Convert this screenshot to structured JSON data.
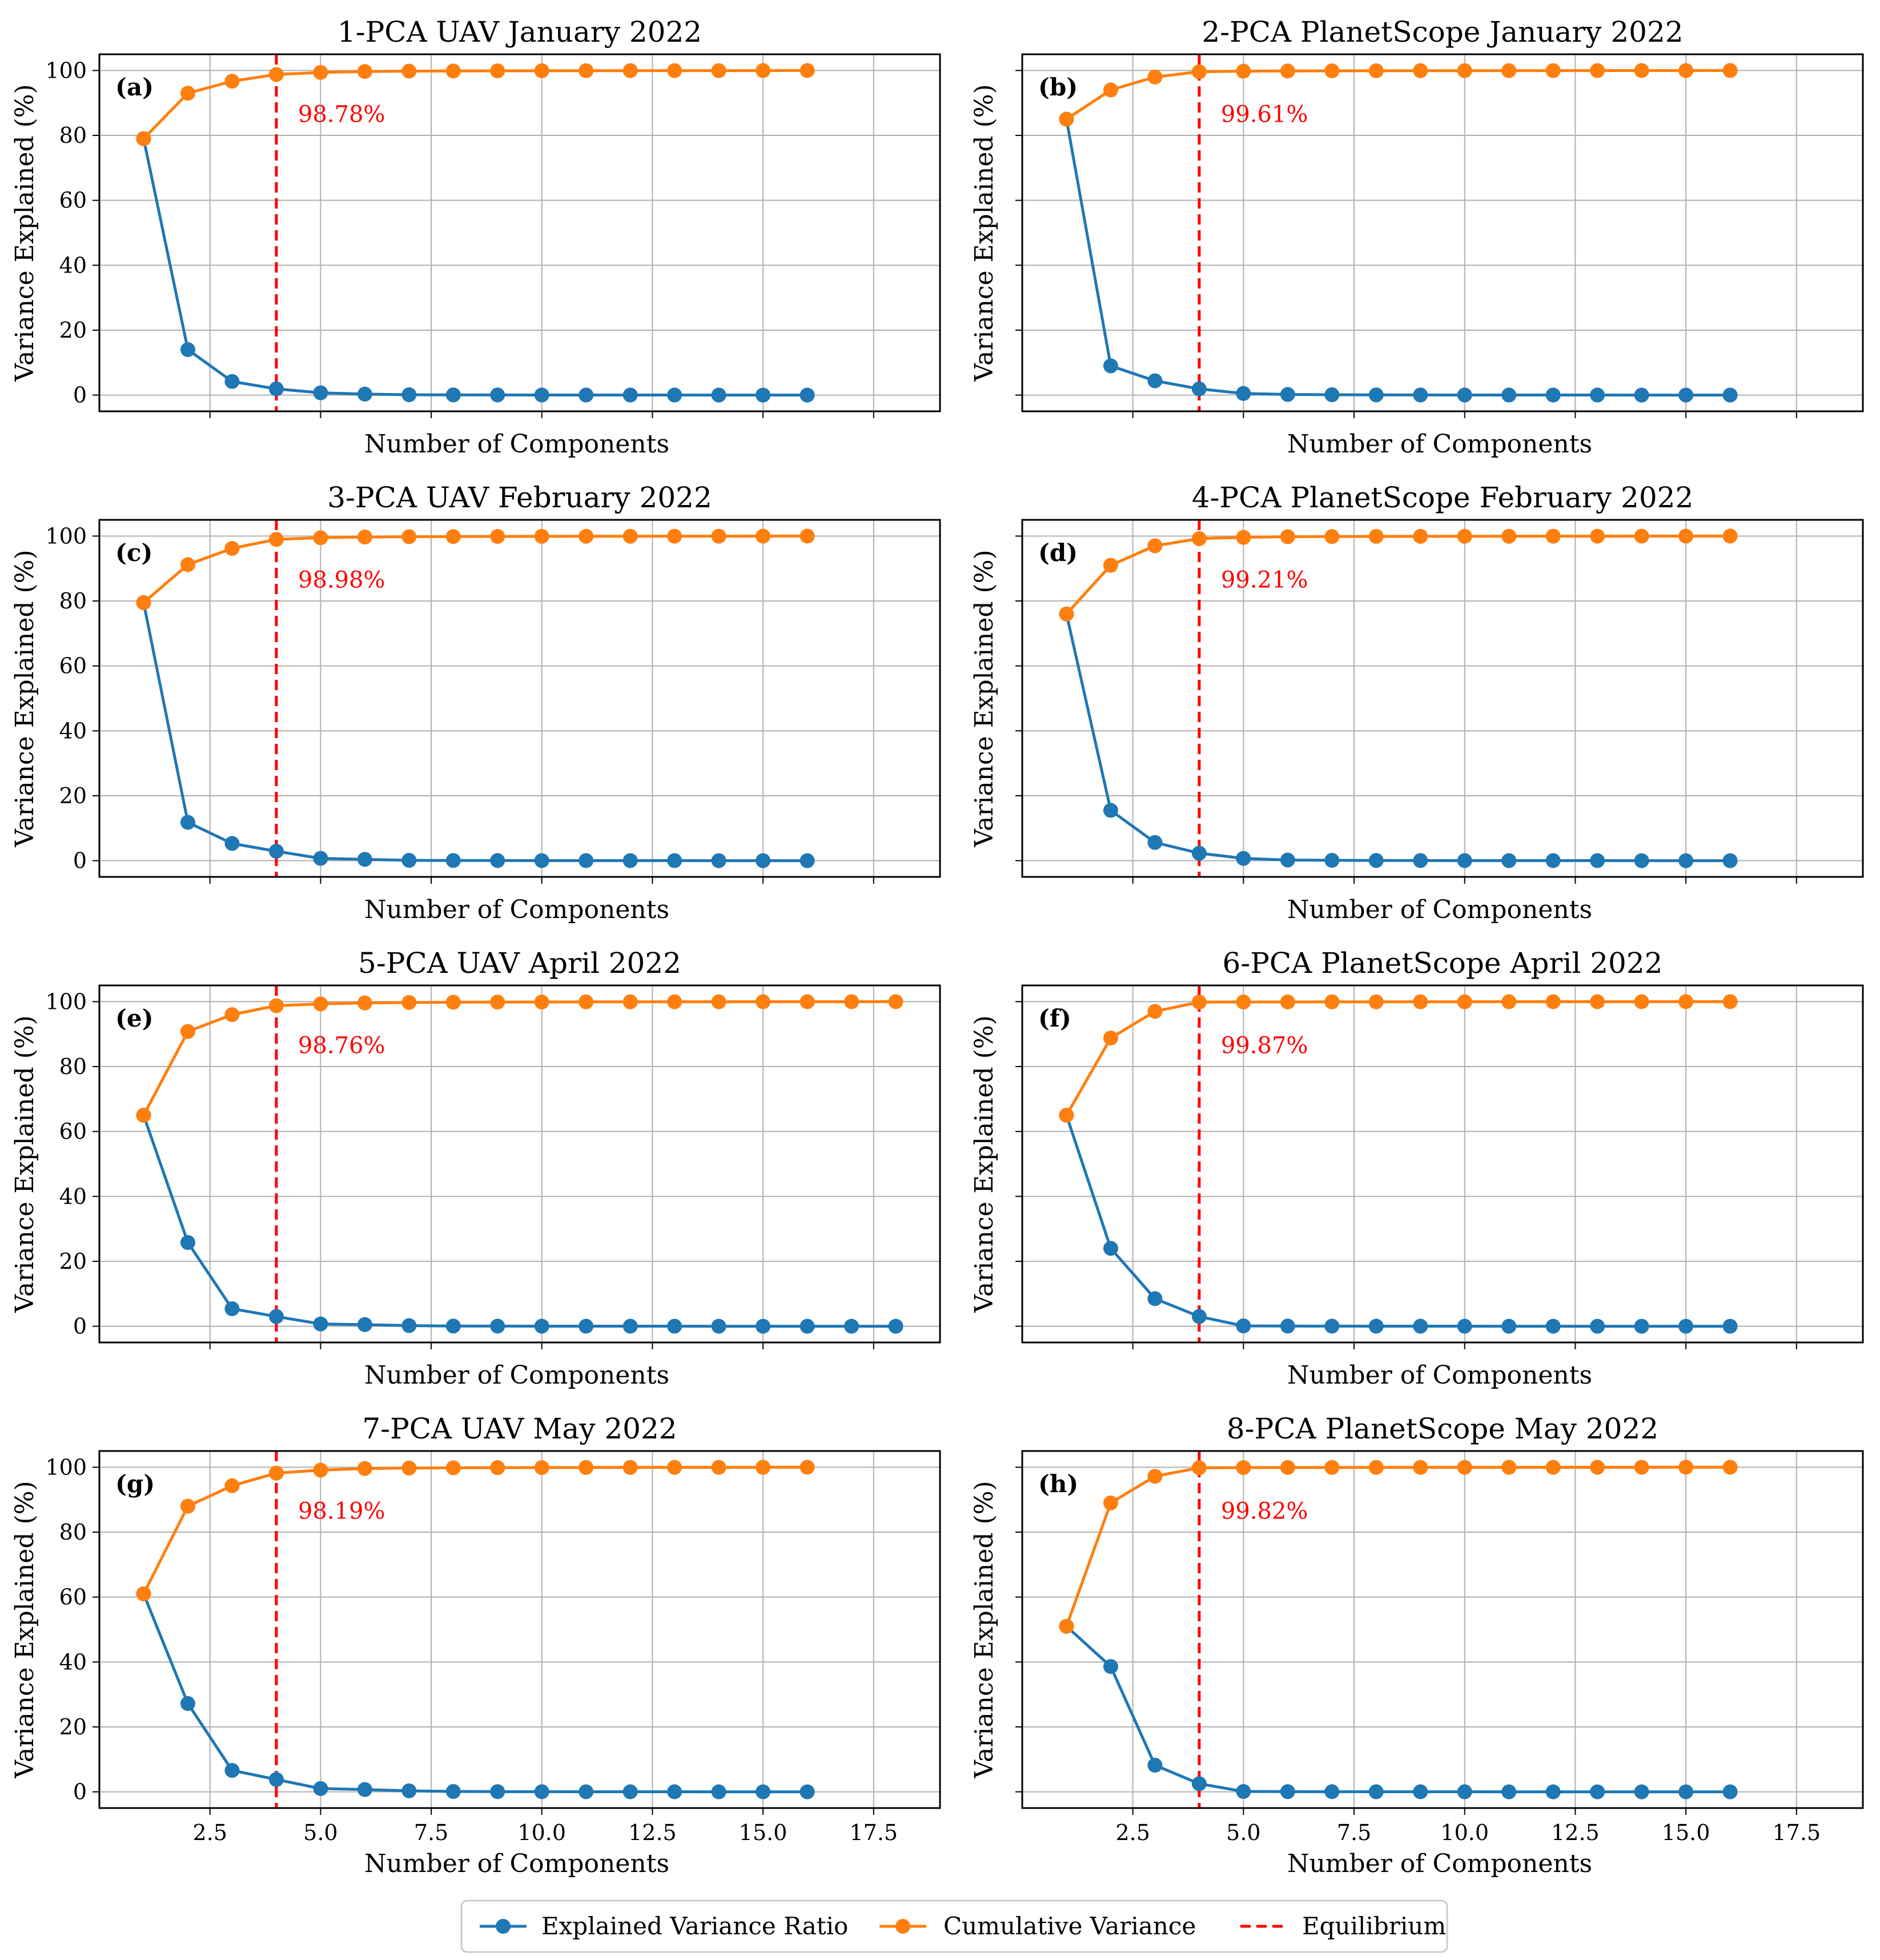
{
  "colors": {
    "explained": "#1f77b4",
    "cumulative": "#ff7f0e",
    "equilibrium": "#ff0000",
    "grid": "#b0b0b0",
    "axes": "#000000"
  },
  "legend": {
    "explained_label": "Explained Variance Ratio",
    "cumulative_label": "Cumulative Variance",
    "equilibrium_label": "Equilibrium"
  },
  "chart_data": [
    {
      "type": "line",
      "title": "1-PCA UAV January 2022",
      "panel_letter": "(a)",
      "xlabel": "Number of Components",
      "ylabel": "Variance Explained (%)",
      "xlim": [
        0,
        19
      ],
      "ylim": [
        -5,
        105
      ],
      "xticks": [
        2.5,
        5.0,
        7.5,
        10.0,
        12.5,
        15.0,
        17.5
      ],
      "yticks": [
        0,
        20,
        40,
        60,
        80,
        100
      ],
      "grid": true,
      "equilibrium_x": 4,
      "annotation": "98.78%",
      "x": [
        1,
        2,
        3,
        4,
        5,
        6,
        7,
        8,
        9,
        10,
        11,
        12,
        13,
        14,
        15,
        16
      ],
      "series": [
        {
          "name": "Explained Variance Ratio",
          "values": [
            79.0,
            14.0,
            4.2,
            1.9,
            0.7,
            0.3,
            0.1,
            0.05,
            0.03,
            0.02,
            0.01,
            0.01,
            0.01,
            0.0,
            0.0,
            0.0
          ]
        },
        {
          "name": "Cumulative Variance",
          "values": [
            79.0,
            93.0,
            96.7,
            98.78,
            99.4,
            99.7,
            99.8,
            99.85,
            99.9,
            99.92,
            99.94,
            99.95,
            99.96,
            99.97,
            99.98,
            100.0
          ]
        }
      ]
    },
    {
      "type": "line",
      "title": "2-PCA PlanetScope January 2022",
      "panel_letter": "(b)",
      "xlabel": "Number of Components",
      "ylabel": "Variance Explained (%)",
      "xlim": [
        0,
        19
      ],
      "ylim": [
        -5,
        105
      ],
      "xticks": [
        2.5,
        5.0,
        7.5,
        10.0,
        12.5,
        15.0,
        17.5
      ],
      "yticks": [
        0,
        20,
        40,
        60,
        80,
        100
      ],
      "grid": true,
      "equilibrium_x": 4,
      "annotation": "99.61%",
      "x": [
        1,
        2,
        3,
        4,
        5,
        6,
        7,
        8,
        9,
        10,
        11,
        12,
        13,
        14,
        15,
        16
      ],
      "series": [
        {
          "name": "Explained Variance Ratio",
          "values": [
            85.0,
            9.0,
            4.4,
            1.9,
            0.5,
            0.2,
            0.1,
            0.05,
            0.03,
            0.02,
            0.01,
            0.01,
            0.01,
            0.0,
            0.0,
            0.0
          ]
        },
        {
          "name": "Cumulative Variance",
          "values": [
            85.0,
            94.0,
            98.0,
            99.61,
            99.8,
            99.85,
            99.9,
            99.92,
            99.94,
            99.95,
            99.96,
            99.97,
            99.98,
            99.99,
            99.99,
            100.0
          ]
        }
      ]
    },
    {
      "type": "line",
      "title": "3-PCA UAV February 2022",
      "panel_letter": "(c)",
      "xlabel": "Number of Components",
      "ylabel": "Variance Explained (%)",
      "xlim": [
        0,
        19
      ],
      "ylim": [
        -5,
        105
      ],
      "xticks": [
        2.5,
        5.0,
        7.5,
        10.0,
        12.5,
        15.0,
        17.5
      ],
      "yticks": [
        0,
        20,
        40,
        60,
        80,
        100
      ],
      "grid": true,
      "equilibrium_x": 4,
      "annotation": "98.98%",
      "x": [
        1,
        2,
        3,
        4,
        5,
        6,
        7,
        8,
        9,
        10,
        11,
        12,
        13,
        14,
        15,
        16
      ],
      "series": [
        {
          "name": "Explained Variance Ratio",
          "values": [
            79.5,
            11.8,
            5.3,
            2.9,
            0.7,
            0.4,
            0.1,
            0.05,
            0.03,
            0.02,
            0.01,
            0.01,
            0.01,
            0.0,
            0.0,
            0.0
          ]
        },
        {
          "name": "Cumulative Variance",
          "values": [
            79.5,
            91.2,
            96.2,
            98.98,
            99.5,
            99.7,
            99.8,
            99.85,
            99.9,
            99.92,
            99.94,
            99.95,
            99.96,
            99.97,
            99.98,
            100.0
          ]
        }
      ]
    },
    {
      "type": "line",
      "title": "4-PCA PlanetScope February 2022",
      "panel_letter": "(d)",
      "xlabel": "Number of Components",
      "ylabel": "Variance Explained (%)",
      "xlim": [
        0,
        19
      ],
      "ylim": [
        -5,
        105
      ],
      "xticks": [
        2.5,
        5.0,
        7.5,
        10.0,
        12.5,
        15.0,
        17.5
      ],
      "yticks": [
        0,
        20,
        40,
        60,
        80,
        100
      ],
      "grid": true,
      "equilibrium_x": 4,
      "annotation": "99.21%",
      "x": [
        1,
        2,
        3,
        4,
        5,
        6,
        7,
        8,
        9,
        10,
        11,
        12,
        13,
        14,
        15,
        16
      ],
      "series": [
        {
          "name": "Explained Variance Ratio",
          "values": [
            76.0,
            15.5,
            5.6,
            2.3,
            0.7,
            0.2,
            0.1,
            0.05,
            0.03,
            0.02,
            0.01,
            0.01,
            0.01,
            0.0,
            0.0,
            0.0
          ]
        },
        {
          "name": "Cumulative Variance",
          "values": [
            76.0,
            91.0,
            97.0,
            99.21,
            99.6,
            99.8,
            99.85,
            99.9,
            99.92,
            99.94,
            99.95,
            99.96,
            99.97,
            99.98,
            99.99,
            100.0
          ]
        }
      ]
    },
    {
      "type": "line",
      "title": "5-PCA UAV April 2022",
      "panel_letter": "(e)",
      "xlabel": "Number of Components",
      "ylabel": "Variance Explained (%)",
      "xlim": [
        0,
        19
      ],
      "ylim": [
        -5,
        105
      ],
      "xticks": [
        2.5,
        5.0,
        7.5,
        10.0,
        12.5,
        15.0,
        17.5
      ],
      "yticks": [
        0,
        20,
        40,
        60,
        80,
        100
      ],
      "grid": true,
      "equilibrium_x": 4,
      "annotation": "98.76%",
      "x": [
        1,
        2,
        3,
        4,
        5,
        6,
        7,
        8,
        9,
        10,
        11,
        12,
        13,
        14,
        15,
        16,
        17,
        18
      ],
      "series": [
        {
          "name": "Explained Variance Ratio",
          "values": [
            65.0,
            25.8,
            5.4,
            3.0,
            0.7,
            0.5,
            0.2,
            0.05,
            0.03,
            0.02,
            0.01,
            0.01,
            0.01,
            0.0,
            0.0,
            0.0,
            0.0,
            0.0
          ]
        },
        {
          "name": "Cumulative Variance",
          "values": [
            65.0,
            90.8,
            96.0,
            98.76,
            99.3,
            99.6,
            99.75,
            99.82,
            99.87,
            99.9,
            99.93,
            99.95,
            99.96,
            99.97,
            99.98,
            99.99,
            99.99,
            100.0
          ]
        }
      ]
    },
    {
      "type": "line",
      "title": "6-PCA PlanetScope April 2022",
      "panel_letter": "(f)",
      "xlabel": "Number of Components",
      "ylabel": "Variance Explained (%)",
      "xlim": [
        0,
        19
      ],
      "ylim": [
        -5,
        105
      ],
      "xticks": [
        2.5,
        5.0,
        7.5,
        10.0,
        12.5,
        15.0,
        17.5
      ],
      "yticks": [
        0,
        20,
        40,
        60,
        80,
        100
      ],
      "grid": true,
      "equilibrium_x": 4,
      "annotation": "99.87%",
      "x": [
        1,
        2,
        3,
        4,
        5,
        6,
        7,
        8,
        9,
        10,
        11,
        12,
        13,
        14,
        15,
        16
      ],
      "series": [
        {
          "name": "Explained Variance Ratio",
          "values": [
            65.0,
            24.0,
            8.5,
            3.0,
            0.1,
            0.05,
            0.03,
            0.02,
            0.01,
            0.01,
            0.0,
            0.0,
            0.0,
            0.0,
            0.0,
            0.0
          ]
        },
        {
          "name": "Cumulative Variance",
          "values": [
            65.0,
            88.8,
            97.0,
            99.87,
            99.9,
            99.92,
            99.94,
            99.95,
            99.96,
            99.97,
            99.98,
            99.98,
            99.99,
            99.99,
            100.0,
            100.0
          ]
        }
      ]
    },
    {
      "type": "line",
      "title": "7-PCA UAV May 2022",
      "panel_letter": "(g)",
      "xlabel": "Number of Components",
      "ylabel": "Variance Explained (%)",
      "xlim": [
        0,
        19
      ],
      "ylim": [
        -5,
        105
      ],
      "xticks": [
        2.5,
        5.0,
        7.5,
        10.0,
        12.5,
        15.0,
        17.5
      ],
      "yticks": [
        0,
        20,
        40,
        60,
        80,
        100
      ],
      "grid": true,
      "equilibrium_x": 4,
      "annotation": "98.19%",
      "x": [
        1,
        2,
        3,
        4,
        5,
        6,
        7,
        8,
        9,
        10,
        11,
        12,
        13,
        14,
        15,
        16
      ],
      "series": [
        {
          "name": "Explained Variance Ratio",
          "values": [
            61.0,
            27.2,
            6.6,
            3.8,
            1.0,
            0.7,
            0.3,
            0.1,
            0.05,
            0.03,
            0.02,
            0.01,
            0.01,
            0.0,
            0.0,
            0.0
          ]
        },
        {
          "name": "Cumulative Variance",
          "values": [
            61.0,
            88.0,
            94.3,
            98.19,
            99.1,
            99.6,
            99.75,
            99.82,
            99.87,
            99.9,
            99.93,
            99.95,
            99.96,
            99.97,
            99.98,
            100.0
          ]
        }
      ]
    },
    {
      "type": "line",
      "title": "8-PCA PlanetScope May 2022",
      "panel_letter": "(h)",
      "xlabel": "Number of Components",
      "ylabel": "Variance Explained (%)",
      "xlim": [
        0,
        19
      ],
      "ylim": [
        -5,
        105
      ],
      "xticks": [
        2.5,
        5.0,
        7.5,
        10.0,
        12.5,
        15.0,
        17.5
      ],
      "yticks": [
        0,
        20,
        40,
        60,
        80,
        100
      ],
      "grid": true,
      "equilibrium_x": 4,
      "annotation": "99.82%",
      "x": [
        1,
        2,
        3,
        4,
        5,
        6,
        7,
        8,
        9,
        10,
        11,
        12,
        13,
        14,
        15,
        16
      ],
      "series": [
        {
          "name": "Explained Variance Ratio",
          "values": [
            51.0,
            38.6,
            8.2,
            2.5,
            0.1,
            0.05,
            0.03,
            0.02,
            0.01,
            0.01,
            0.0,
            0.0,
            0.0,
            0.0,
            0.0,
            0.0
          ]
        },
        {
          "name": "Cumulative Variance",
          "values": [
            51.0,
            89.0,
            97.2,
            99.82,
            99.9,
            99.92,
            99.94,
            99.95,
            99.96,
            99.97,
            99.98,
            99.98,
            99.99,
            99.99,
            100.0,
            100.0
          ]
        }
      ]
    }
  ]
}
